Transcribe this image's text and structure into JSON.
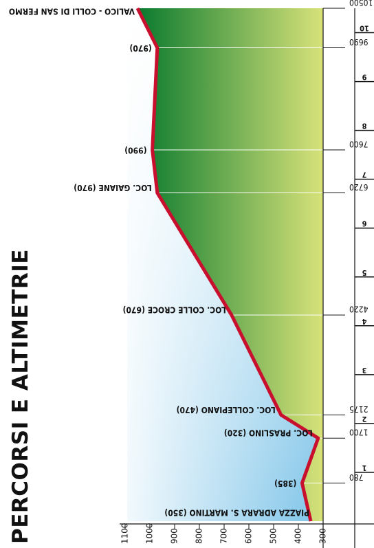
{
  "page": {
    "title": "PERCORSI E ALTIMETRIE"
  },
  "chart_data": {
    "type": "area",
    "title": "",
    "xlabel": "",
    "ylabel": "",
    "orientation": "rotated-90",
    "xlim": [
      0,
      10500
    ],
    "ylim": [
      300,
      1100
    ],
    "y_ticks": [
      "300",
      "400",
      "500",
      "600",
      "700",
      "800",
      "900",
      "1000",
      "1100"
    ],
    "km_ticks": [
      "1",
      "2",
      "3",
      "4",
      "5",
      "6",
      "7",
      "8",
      "9",
      "10"
    ],
    "distance_labels": [
      "780",
      "1700",
      "2175",
      "4220",
      "6720",
      "7600",
      "9690",
      "10500"
    ],
    "profile": [
      {
        "x": 0,
        "y": 350
      },
      {
        "x": 780,
        "y": 385
      },
      {
        "x": 1700,
        "y": 320
      },
      {
        "x": 2175,
        "y": 470
      },
      {
        "x": 4220,
        "y": 670
      },
      {
        "x": 6720,
        "y": 970
      },
      {
        "x": 7600,
        "y": 990
      },
      {
        "x": 9690,
        "y": 970
      },
      {
        "x": 10500,
        "y": 1050
      }
    ],
    "points": [
      {
        "label": "PIAZZA ADRARA S. MARTINO (350)",
        "x": 0,
        "y": 350
      },
      {
        "label": "(385)",
        "x": 780,
        "y": 385
      },
      {
        "label": "LOC. PRASLINO (320)",
        "x": 1700,
        "y": 320
      },
      {
        "label": "LOC. COLLEPIANO (470)",
        "x": 2175,
        "y": 470
      },
      {
        "label": "LOC. COLLE CROCE (670)",
        "x": 4220,
        "y": 670
      },
      {
        "label": "LOC. GAIANE (970)",
        "x": 6720,
        "y": 970
      },
      {
        "label": "(990)",
        "x": 7600,
        "y": 990
      },
      {
        "label": "(970)",
        "x": 9690,
        "y": 970
      },
      {
        "label": "VALICO - COLLI DI SAN FERMO",
        "x": 10500,
        "y": 1050
      }
    ],
    "colors": {
      "line": "#c8102e",
      "area_top": "#0a7a2e",
      "area_bottom": "#d8e27a",
      "sky": "#7cc3e8"
    }
  }
}
